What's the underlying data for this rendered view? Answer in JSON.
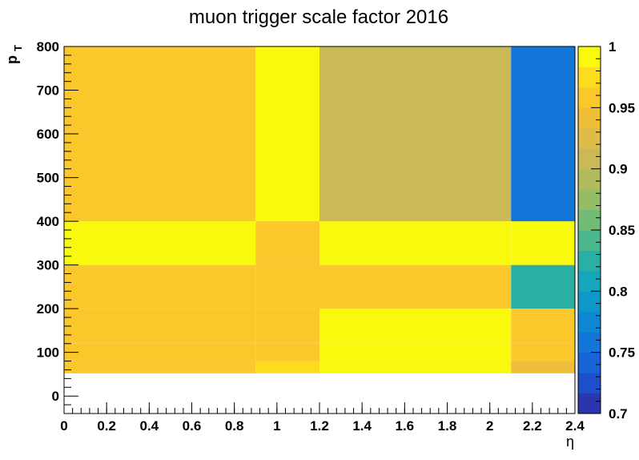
{
  "chart_data": {
    "type": "heatmap",
    "title": "muon trigger scale factor 2016",
    "xlabel": "η",
    "ylabel_main": "p",
    "ylabel_sub": "T",
    "xlim": [
      0,
      2.4
    ],
    "ylim": [
      -40,
      800
    ],
    "x_ticks": [
      "0",
      "0.2",
      "0.4",
      "0.6",
      "0.8",
      "1",
      "1.2",
      "1.4",
      "1.6",
      "1.8",
      "2",
      "2.2",
      "2.4"
    ],
    "y_ticks": [
      "0",
      "100",
      "200",
      "300",
      "400",
      "500",
      "600",
      "700",
      "800"
    ],
    "x_ticks_value": [
      0,
      0.2,
      0.4,
      0.6,
      0.8,
      1,
      1.2,
      1.4,
      1.6,
      1.8,
      2,
      2.2,
      2.4
    ],
    "y_ticks_value": [
      0,
      100,
      200,
      300,
      400,
      500,
      600,
      700,
      800
    ],
    "z_range": [
      0.7,
      1.0
    ],
    "colorbar_ticks": [
      "0.7",
      "0.75",
      "0.8",
      "0.85",
      "0.9",
      "0.95",
      "1"
    ],
    "colorbar_ticks_value": [
      0.7,
      0.75,
      0.8,
      0.85,
      0.9,
      0.95,
      1.0
    ],
    "x_edges": [
      0,
      0.9,
      1.2,
      2.1,
      2.4
    ],
    "y_edges": [
      52,
      80,
      120,
      200,
      300,
      400,
      800
    ],
    "z": [
      [
        0.965,
        0.98,
        0.995,
        0.935
      ],
      [
        0.965,
        0.955,
        0.995,
        0.955
      ],
      [
        0.965,
        0.955,
        0.995,
        0.965
      ],
      [
        0.965,
        0.955,
        0.965,
        0.83
      ],
      [
        0.995,
        0.955,
        0.995,
        0.995
      ],
      [
        0.96,
        0.995,
        0.905,
        0.765
      ]
    ],
    "palette": [
      "#2b35ad",
      "#1e4fcb",
      "#1764d8",
      "#1276d8",
      "#0f87d4",
      "#0e98c8",
      "#16a6b9",
      "#2aafa4",
      "#4db78d",
      "#73bc77",
      "#94bd66",
      "#b1bb5e",
      "#cab956",
      "#dfbb48",
      "#efbe39",
      "#fbc82b",
      "#fcdc1c",
      "#f9f90e"
    ]
  }
}
